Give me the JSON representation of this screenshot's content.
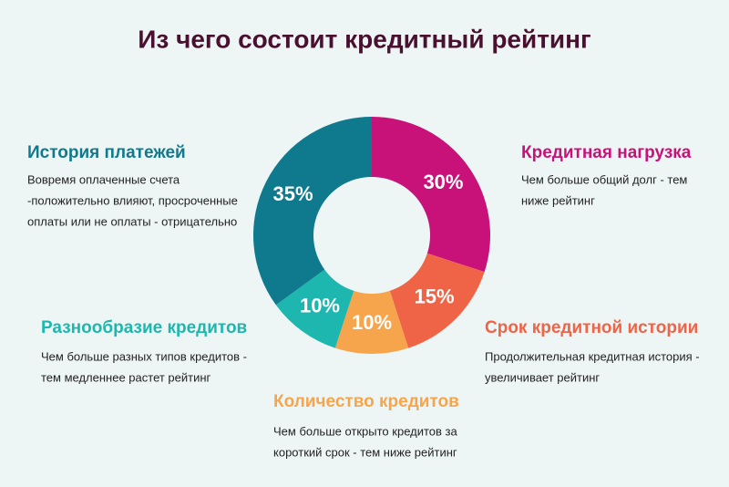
{
  "chart_data": {
    "type": "donut",
    "title": "Из чего состоит кредитный рейтинг",
    "categories": [
      "Кредитная нагрузка",
      "Срок кредитной истории",
      "Количество кредитов",
      "Разнообразие кредитов",
      "История платежей"
    ],
    "values": [
      30,
      15,
      10,
      10,
      35
    ],
    "value_labels": [
      "30%",
      "15%",
      "10%",
      "10%",
      "35%"
    ],
    "colors": [
      "#c8127a",
      "#ef6447",
      "#f6a54c",
      "#1db7b0",
      "#0f7a8e"
    ],
    "descriptions": [
      [
        "Чем больше общий долг - тем",
        "ниже рейтинг"
      ],
      [
        "Продолжительная кредитная история  -",
        "увеличивает рейтинг"
      ],
      [
        "Чем больше открыто кредитов за",
        "короткий срок - тем ниже рейтинг"
      ],
      [
        "Чем больше разных типов кредитов  -",
        "тем медленнее растет рейтинг"
      ],
      [
        "Вовремя оплаченные счета",
        "-положительно влияют, просроченные",
        "оплаты или не оплаты - отрицательно"
      ]
    ]
  }
}
